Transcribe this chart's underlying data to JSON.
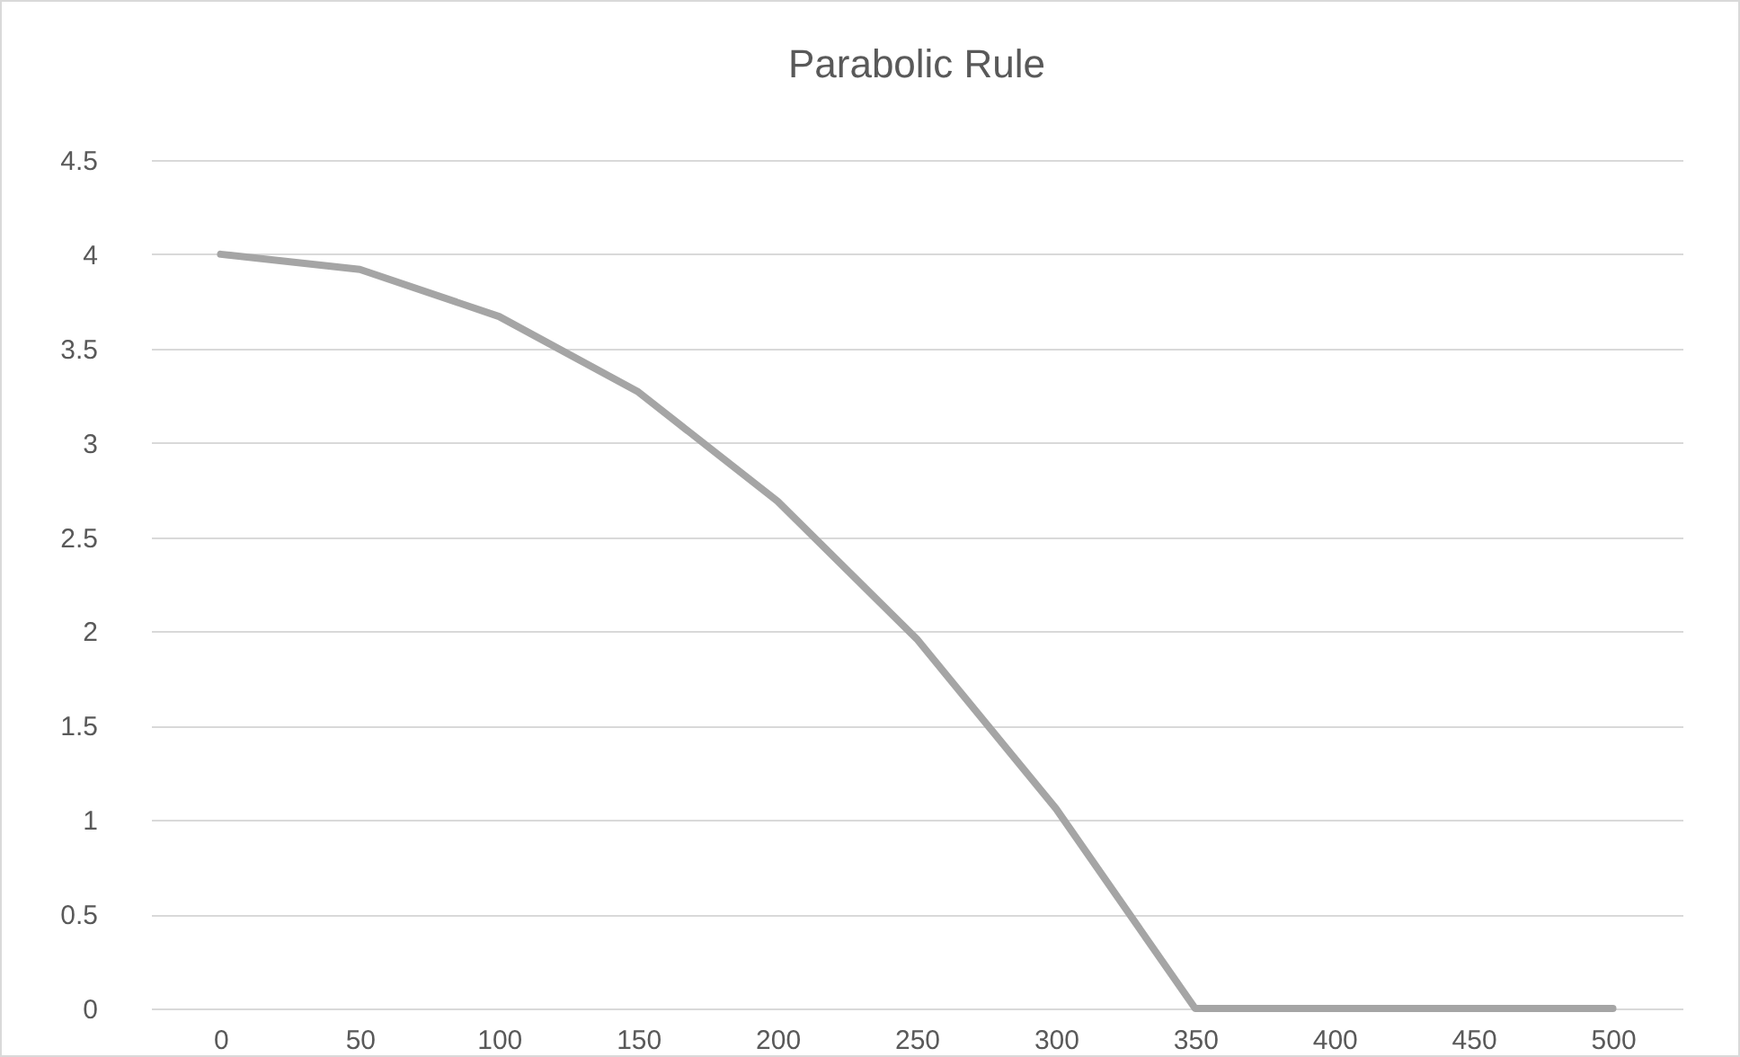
{
  "chart_data": {
    "type": "line",
    "title": "Parabolic Rule",
    "categories": [
      "0",
      "50",
      "100",
      "150",
      "200",
      "250",
      "300",
      "350",
      "400",
      "450",
      "500"
    ],
    "series": [
      {
        "color": "#a5a5a5",
        "values": [
          4,
          3.92,
          3.67,
          3.27,
          2.69,
          1.96,
          1.06,
          0,
          0,
          0,
          0
        ]
      }
    ],
    "ylim": [
      0,
      4.5
    ],
    "yticks": [
      0,
      0.5,
      1,
      1.5,
      2,
      2.5,
      3,
      3.5,
      4,
      4.5
    ],
    "grid": "y",
    "legend": false,
    "marker": "none",
    "line_style": "solid"
  }
}
